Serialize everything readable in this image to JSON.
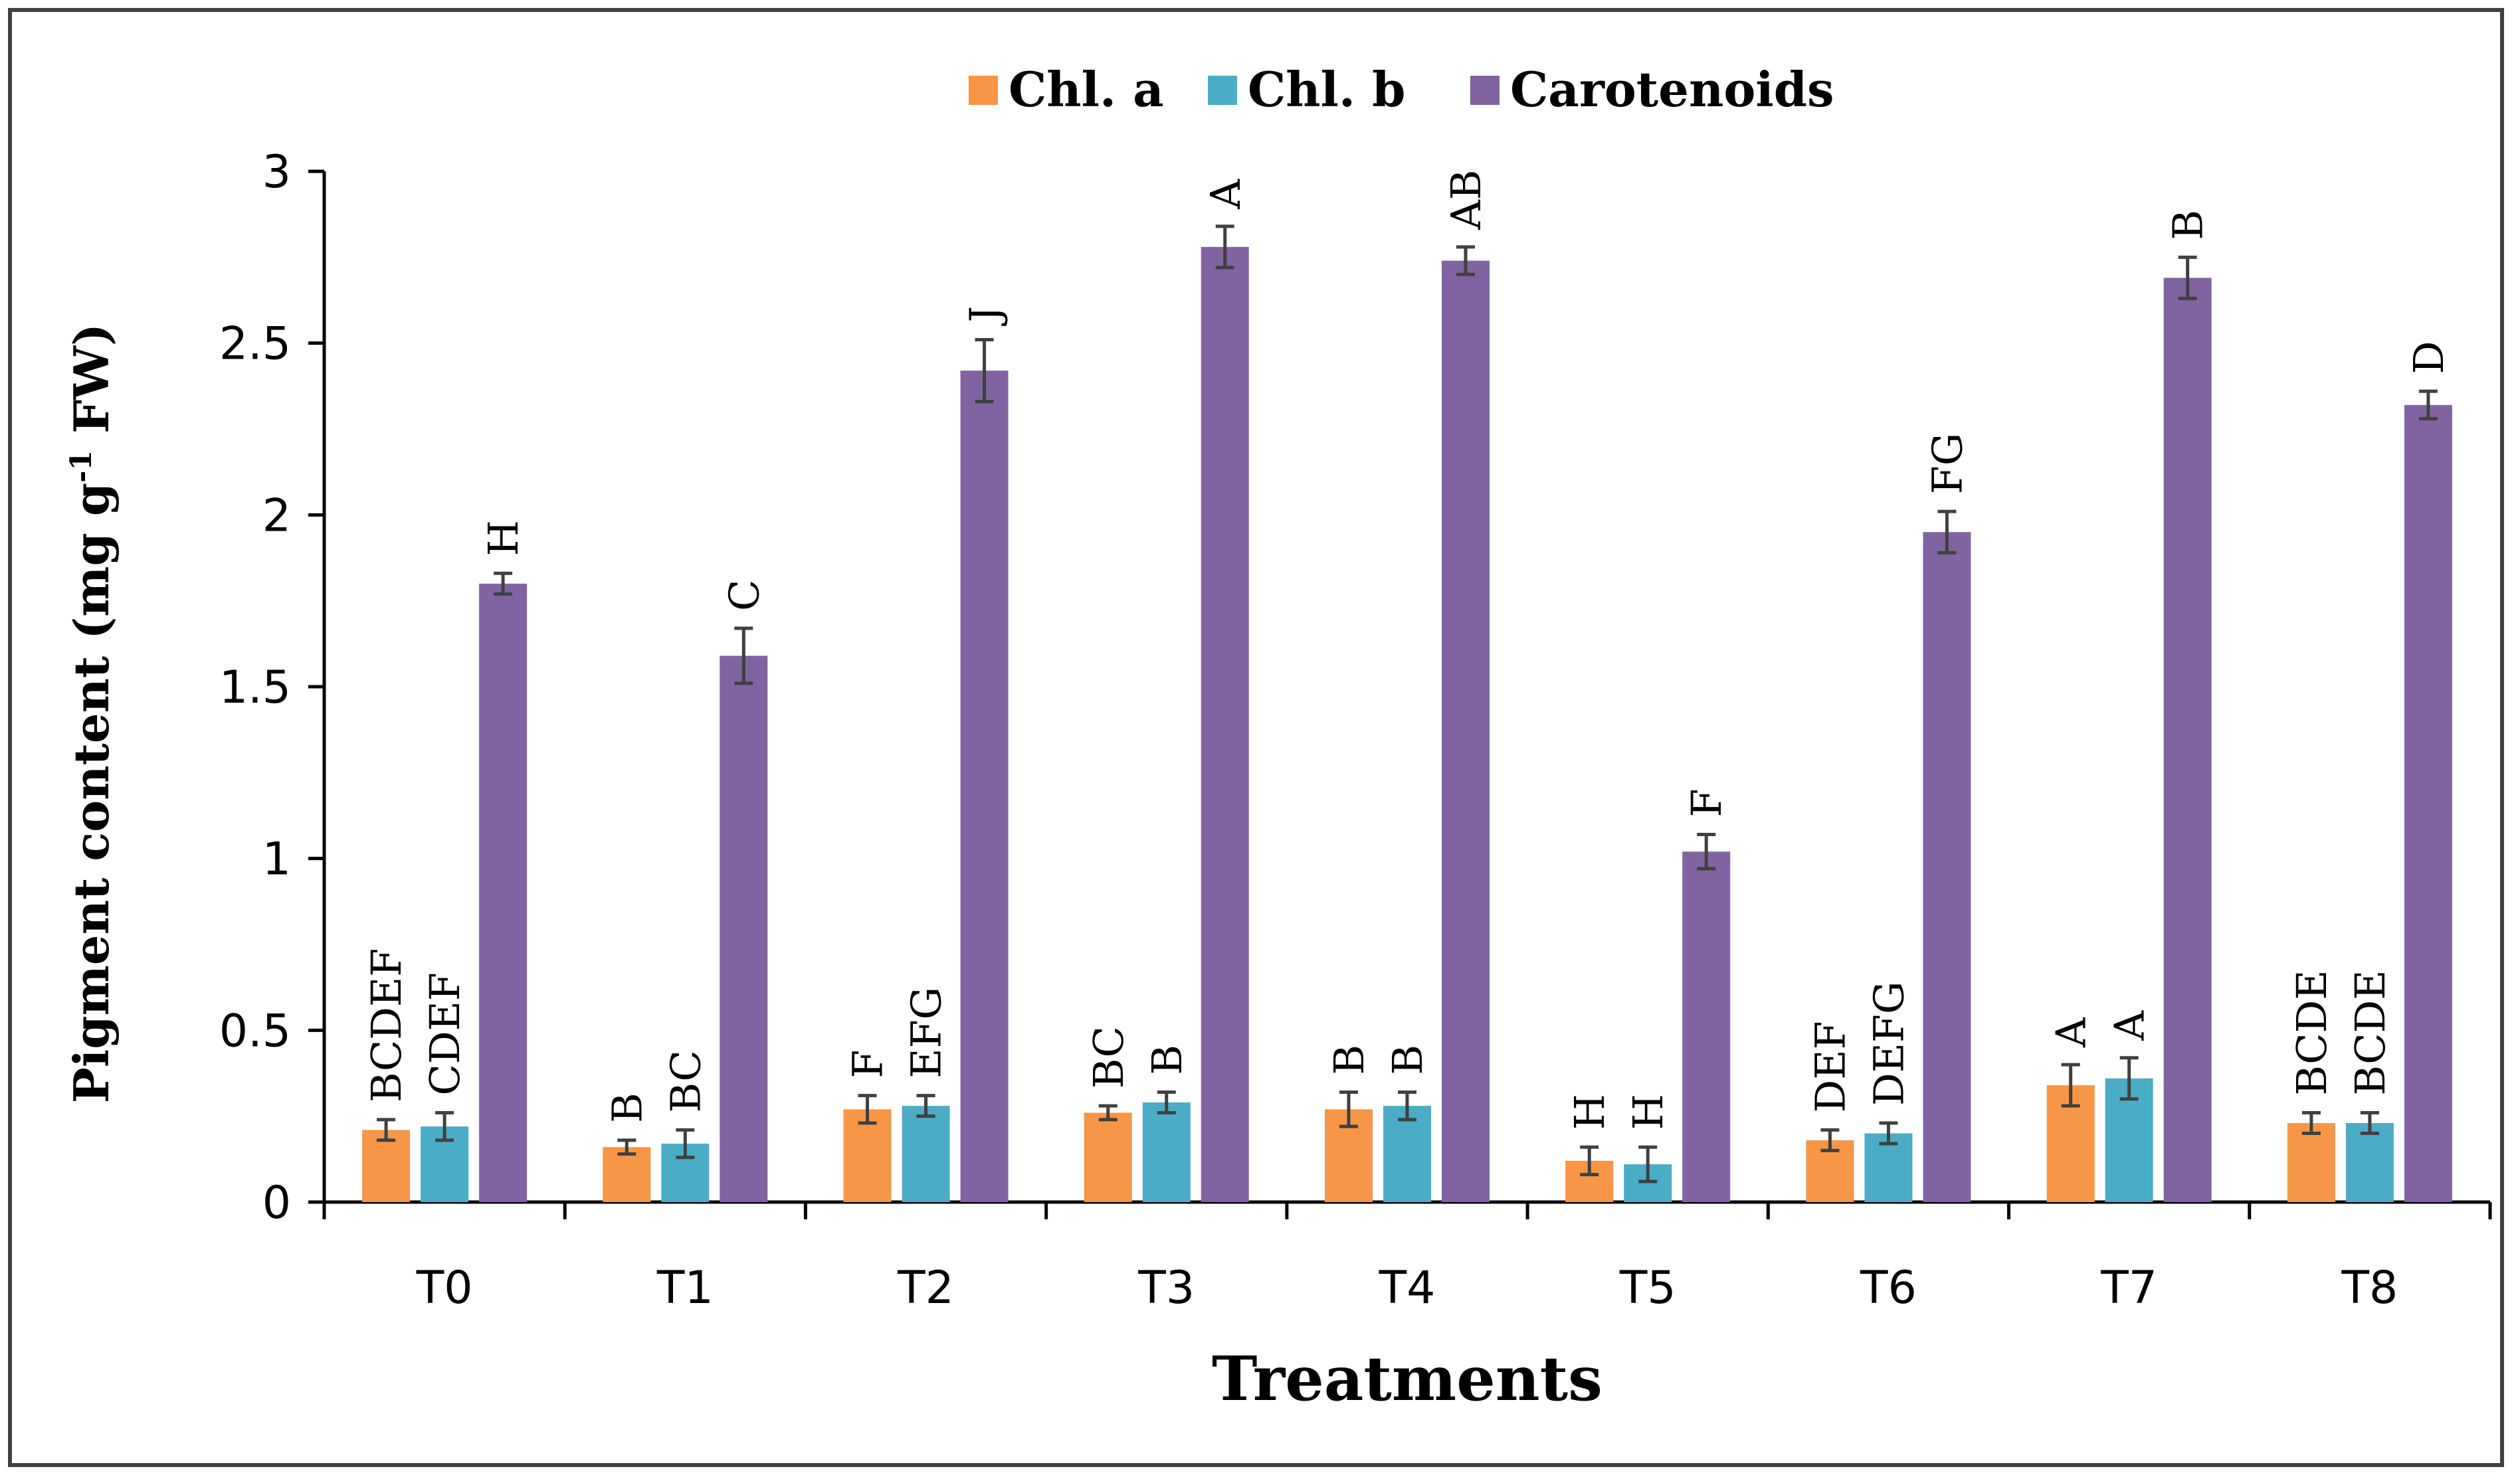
{
  "chart_data": {
    "type": "bar",
    "title": "",
    "xlabel": "Treatments",
    "ylabel_main": "Pigment content (mg g",
    "ylabel_sup": "-1",
    "ylabel_tail": " FW)",
    "ylim": [
      0,
      3
    ],
    "yticks": [
      "0",
      "0.5",
      "1",
      "1.5",
      "2",
      "2.5",
      "3"
    ],
    "ytick_values": [
      0,
      0.5,
      1,
      1.5,
      2,
      2.5,
      3
    ],
    "categories": [
      "T0",
      "T1",
      "T2",
      "T3",
      "T4",
      "T5",
      "T6",
      "T7",
      "T8"
    ],
    "legend_position": "top-center",
    "series": [
      {
        "name": "Chl. a",
        "color": "#F79646",
        "values": [
          0.21,
          0.16,
          0.27,
          0.26,
          0.27,
          0.12,
          0.18,
          0.34,
          0.23
        ],
        "errors": [
          0.03,
          0.02,
          0.04,
          0.02,
          0.05,
          0.04,
          0.03,
          0.06,
          0.03
        ],
        "labels": [
          "BCDEF",
          "B",
          "F",
          "BC",
          "B",
          "H",
          "DEF",
          "A",
          "BCDE"
        ]
      },
      {
        "name": "Chl. b",
        "color": "#4BACC6",
        "values": [
          0.22,
          0.17,
          0.28,
          0.29,
          0.28,
          0.11,
          0.2,
          0.36,
          0.23
        ],
        "errors": [
          0.04,
          0.04,
          0.03,
          0.03,
          0.04,
          0.05,
          0.03,
          0.06,
          0.03
        ],
        "labels": [
          "CDEF",
          "BC",
          "EFG",
          "B",
          "B",
          "H",
          "DEFG",
          "A",
          "BCDE"
        ]
      },
      {
        "name": "Carotenoids",
        "color": "#8064A2",
        "values": [
          1.8,
          1.59,
          2.42,
          2.78,
          2.74,
          1.02,
          1.95,
          2.69,
          2.32
        ],
        "errors": [
          0.03,
          0.08,
          0.09,
          0.06,
          0.04,
          0.05,
          0.06,
          0.06,
          0.04
        ],
        "labels": [
          "H",
          "C",
          "J",
          "A",
          "AB",
          "F",
          "FG",
          "B",
          "D"
        ]
      }
    ]
  }
}
